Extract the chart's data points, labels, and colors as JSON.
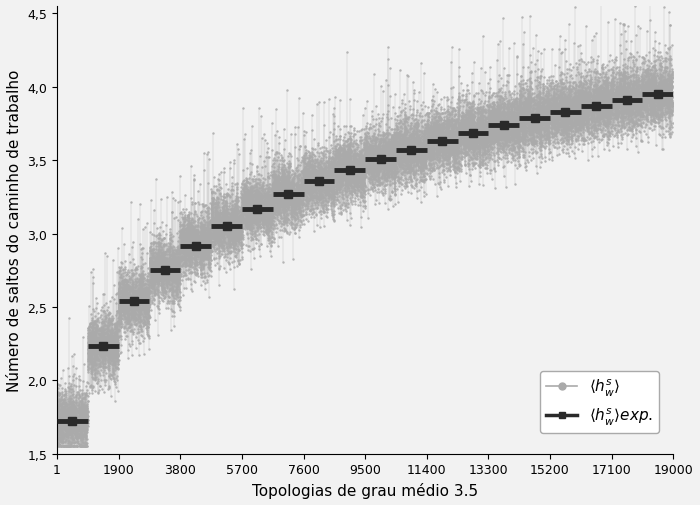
{
  "xlabel": "Topologias de grau médio 3.5",
  "ylabel": "Número de saltos do caminho de trabalho",
  "xlim": [
    1,
    19000
  ],
  "ylim": [
    1.5,
    4.55
  ],
  "xticks": [
    1,
    1900,
    3800,
    5700,
    7600,
    9500,
    11400,
    13300,
    15200,
    17100,
    19000
  ],
  "yticks": [
    1.5,
    2.0,
    2.5,
    3.0,
    3.5,
    4.0,
    4.5
  ],
  "scatter_color": "#aaaaaa",
  "step_color": "#2a2a2a",
  "background_color": "#f2f2f2",
  "n_groups": 20,
  "total_points": 19000,
  "seed": 7,
  "y_start": 1.72,
  "y_end": 3.95
}
